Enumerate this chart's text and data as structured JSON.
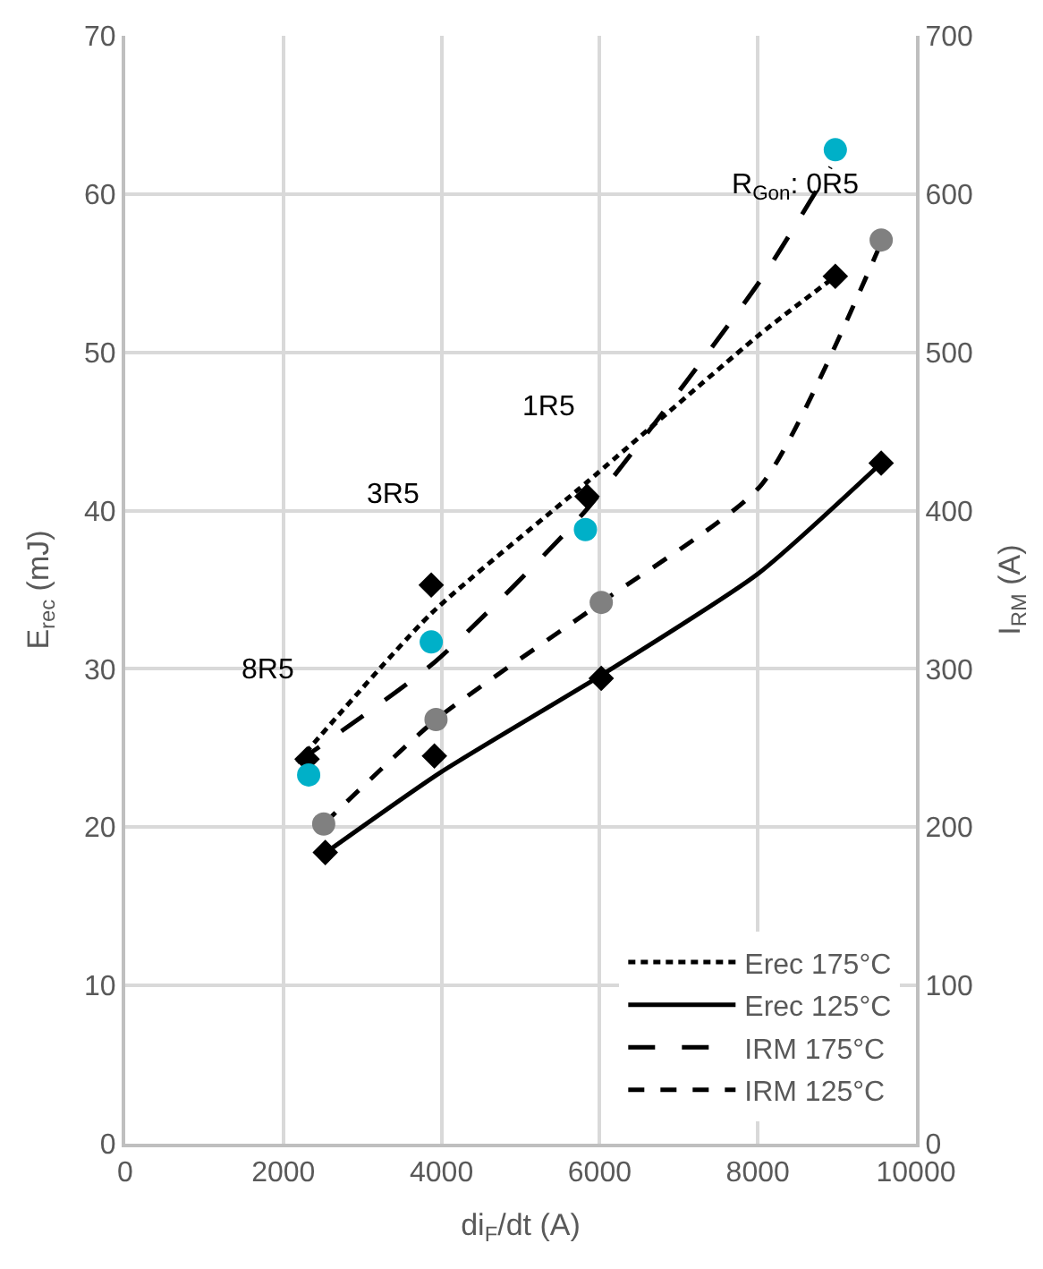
{
  "chart_data": {
    "type": "line",
    "xlabel": "di$_{F}$/dt (A)",
    "ylabel": "E$_{rec}$ (mJ)",
    "y2label": "I$_{RM}$ (A)",
    "xlim": [
      0,
      10000
    ],
    "xticks": [
      0,
      2000,
      4000,
      6000,
      8000,
      10000
    ],
    "ylim": [
      0,
      70
    ],
    "yticks": [
      0,
      10,
      20,
      30,
      40,
      50,
      60,
      70
    ],
    "y2lim": [
      0,
      700
    ],
    "y2ticks": [
      0,
      100,
      200,
      300,
      400,
      500,
      600,
      700
    ],
    "grid": true,
    "legend": "bottom right",
    "series": [
      {
        "name": "Erec 175°C",
        "color": "#000000",
        "line_style": "dotted",
        "marker": "none",
        "x": [
          2175,
          3870,
          5840,
          8040,
          8980
        ],
        "values": [
          24.1,
          33.5,
          41.8,
          51.2,
          54.8
        ]
      },
      {
        "name": "Erec 125°C",
        "color": "#000000",
        "line_style": "solid",
        "marker": "none",
        "x": [
          2510,
          4000,
          6020,
          8000,
          9560
        ],
        "values": [
          18.3,
          23.5,
          29.6,
          36,
          43.0
        ]
      },
      {
        "name": "IRM 175°C",
        "axis": "y2",
        "color": "#000000",
        "line_style": "longdash",
        "marker": "none",
        "x": [
          2175,
          3930,
          5840,
          8040,
          8920
        ],
        "values": [
          241,
          305,
          401,
          546,
          617
        ]
      },
      {
        "name": "IRM 125°C",
        "axis": "y2",
        "color": "#000000",
        "line_style": "dashed",
        "marker": "none",
        "x": [
          2510,
          3930,
          6020,
          8040,
          9540
        ],
        "values": [
          202,
          268,
          342,
          416,
          567
        ]
      },
      {
        "type": "scatter",
        "color": "#000000",
        "marker": "diamond",
        "x": [
          2300,
          3870,
          5840,
          8980
        ],
        "values": [
          24.3,
          35.3,
          40.9,
          54.8
        ]
      },
      {
        "type": "scatter",
        "color": "#000000",
        "marker": "diamond",
        "x": [
          2530,
          3910,
          6020,
          9560
        ],
        "values": [
          18.4,
          24.5,
          29.4,
          43.0
        ]
      },
      {
        "type": "scatter",
        "axis": "y2",
        "color": "#00b0c8",
        "marker": "circle",
        "x": [
          2320,
          3870,
          5820,
          8980
        ],
        "values": [
          233,
          317,
          388,
          628
        ]
      },
      {
        "type": "scatter",
        "axis": "y2",
        "color": "#808080",
        "marker": "circle",
        "x": [
          2510,
          3930,
          6020,
          9560
        ],
        "values": [
          202,
          268,
          342,
          571
        ]
      }
    ],
    "annotations": [
      {
        "text": "R$_{Gon}$: 0R5",
        "x": 8980,
        "y": 54.8
      },
      {
        "text": "1R5",
        "x": 5840,
        "y": 40.9
      },
      {
        "text": "3R5",
        "x": 3870,
        "y": 35.3
      },
      {
        "text": "8R5",
        "x": 2300,
        "y": 24.3
      }
    ]
  }
}
